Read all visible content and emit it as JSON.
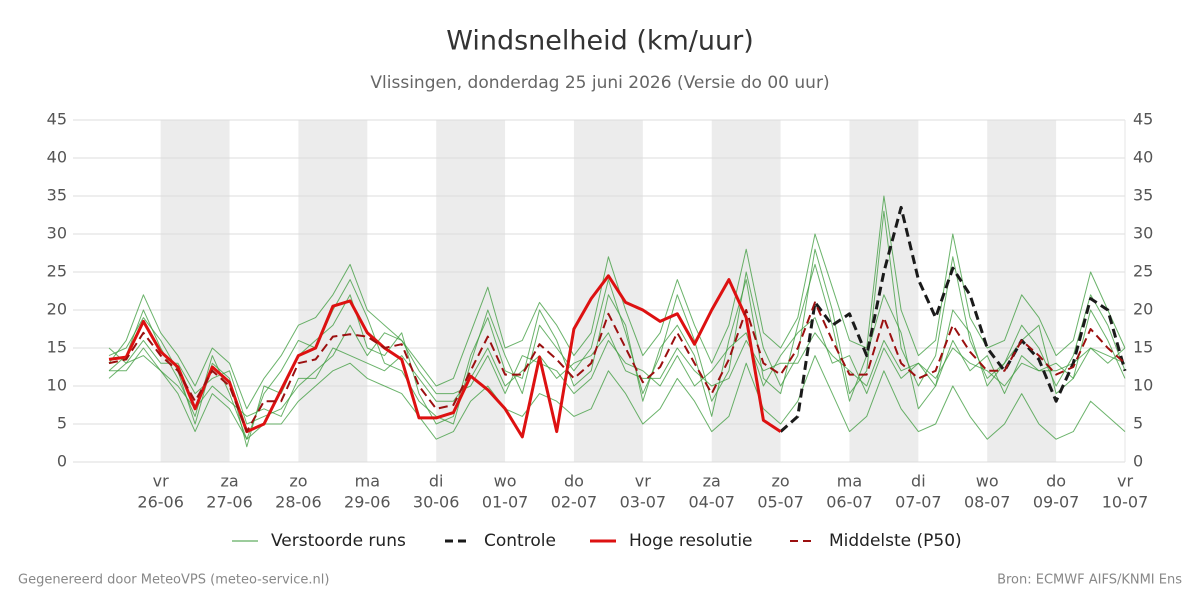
{
  "chart_data": {
    "type": "line",
    "title": "Windsnelheid (km/uur)",
    "subtitle": "Vlissingen, donderdag 25 juni 2026 (Versie do 00 uur)",
    "footer_left": "Gegenereerd door MeteoVPS (meteo-service.nl)",
    "footer_right": "Bron: ECMWF AIFS/KNMI Ens",
    "categories": [
      null,
      null,
      null,
      "26-06",
      null,
      null,
      null,
      "27-06",
      null,
      null,
      null,
      "28-06",
      null,
      null,
      null,
      "29-06",
      null,
      null,
      null,
      "30-06",
      null,
      null,
      null,
      "01-07",
      null,
      null,
      null,
      "02-07",
      null,
      null,
      null,
      "03-07",
      null,
      null,
      null,
      "04-07",
      null,
      null,
      null,
      "05-07",
      null,
      null,
      null,
      "06-07",
      null,
      null,
      null,
      "07-07",
      null,
      null,
      null,
      "08-07",
      null,
      null,
      null,
      "09-07",
      null,
      null,
      null,
      "10-07"
    ],
    "weekdays": [
      null,
      null,
      null,
      "vr",
      null,
      null,
      null,
      "za",
      null,
      null,
      null,
      "zo",
      null,
      null,
      null,
      "ma",
      null,
      null,
      null,
      "di",
      null,
      null,
      null,
      "wo",
      null,
      null,
      null,
      "do",
      null,
      null,
      null,
      "vr",
      null,
      null,
      null,
      "za",
      null,
      null,
      null,
      "zo",
      null,
      null,
      null,
      "ma",
      null,
      null,
      null,
      "di",
      null,
      null,
      null,
      "wo",
      null,
      null,
      null,
      "do",
      null,
      null,
      null,
      "vr"
    ],
    "ylim": [
      0,
      45
    ],
    "yticks": [
      0,
      5,
      10,
      15,
      20,
      25,
      30,
      35,
      40,
      45
    ],
    "grid": true,
    "ensemble": {
      "name": "Verstoorde runs",
      "color": "#3a9a3a",
      "runs": [
        [
          12,
          14,
          20,
          15,
          11,
          6,
          14,
          9,
          3,
          9,
          12,
          16,
          15,
          20,
          24,
          19,
          13,
          12,
          8,
          6,
          5,
          13,
          20,
          14,
          9,
          18,
          15,
          12,
          15,
          24,
          17,
          9,
          14,
          22,
          16,
          8,
          12,
          25,
          15,
          10,
          14,
          28,
          20,
          9,
          12,
          33,
          15,
          10,
          14,
          27,
          16,
          11,
          13,
          18,
          15,
          10,
          14,
          22,
          18,
          12
        ],
        [
          15,
          13,
          16,
          13,
          13,
          9,
          11,
          12,
          5,
          6,
          7,
          10,
          12,
          14,
          18,
          14,
          17,
          16,
          12,
          9,
          9,
          10,
          14,
          9,
          14,
          13,
          12,
          9,
          11,
          16,
          13,
          12,
          10,
          14,
          10,
          12,
          15,
          17,
          10,
          14,
          17,
          19,
          13,
          14,
          9,
          15,
          11,
          13,
          10,
          16,
          12,
          14,
          9,
          14,
          12,
          13,
          11,
          15,
          13,
          15
        ],
        [
          14,
          15,
          19,
          16,
          12,
          5,
          13,
          11,
          2,
          10,
          9,
          14,
          16,
          18,
          22,
          15,
          14,
          17,
          9,
          5,
          6,
          14,
          19,
          12,
          11,
          20,
          16,
          10,
          12,
          22,
          18,
          8,
          15,
          18,
          14,
          6,
          16,
          24,
          11,
          9,
          18,
          26,
          18,
          8,
          14,
          22,
          17,
          7,
          10,
          20,
          17,
          10,
          13,
          16,
          18,
          9,
          11,
          20,
          16,
          11
        ],
        [
          12,
          12,
          15,
          12,
          10,
          7,
          10,
          8,
          6,
          7,
          6,
          11,
          11,
          15,
          14,
          13,
          12,
          14,
          11,
          8,
          8,
          11,
          15,
          10,
          12,
          14,
          11,
          13,
          14,
          17,
          12,
          11,
          11,
          15,
          12,
          10,
          11,
          16,
          12,
          13,
          13,
          17,
          14,
          12,
          10,
          16,
          12,
          13,
          11,
          15,
          13,
          12,
          10,
          13,
          12,
          12,
          13,
          15,
          14,
          13
        ],
        [
          13,
          16,
          22,
          17,
          14,
          10,
          15,
          13,
          7,
          11,
          14,
          18,
          19,
          22,
          26,
          20,
          18,
          16,
          13,
          10,
          11,
          17,
          23,
          15,
          16,
          21,
          18,
          14,
          17,
          27,
          20,
          14,
          17,
          24,
          18,
          13,
          18,
          28,
          17,
          15,
          19,
          30,
          23,
          16,
          15,
          35,
          20,
          14,
          16,
          30,
          19,
          15,
          16,
          22,
          19,
          14,
          16,
          25,
          20,
          15
        ],
        [
          11,
          13,
          14,
          12,
          9,
          4,
          9,
          7,
          3,
          5,
          5,
          8,
          10,
          12,
          13,
          11,
          10,
          9,
          6,
          3,
          4,
          8,
          10,
          7,
          6,
          9,
          8,
          6,
          7,
          12,
          9,
          5,
          7,
          11,
          8,
          4,
          6,
          13,
          7,
          5,
          8,
          14,
          9,
          4,
          6,
          12,
          7,
          4,
          5,
          10,
          6,
          3,
          5,
          9,
          5,
          3,
          4,
          8,
          6,
          4
        ]
      ]
    },
    "series": [
      {
        "name": "Controle",
        "color": "#1a1a1a",
        "dash": true,
        "width": 3,
        "values": [
          null,
          null,
          null,
          null,
          null,
          null,
          null,
          null,
          null,
          null,
          null,
          null,
          null,
          null,
          null,
          null,
          null,
          null,
          null,
          null,
          null,
          null,
          null,
          null,
          null,
          null,
          null,
          null,
          null,
          null,
          null,
          null,
          null,
          null,
          null,
          null,
          null,
          null,
          null,
          4,
          6,
          21,
          18,
          19.5,
          14,
          25,
          33.5,
          24,
          19,
          25.5,
          22,
          15,
          12,
          16,
          13.5,
          8,
          13,
          21.5,
          20,
          12
        ]
      },
      {
        "name": "Hoge resolutie",
        "color": "#dd1111",
        "dash": false,
        "width": 3,
        "values": [
          13.5,
          13.8,
          18.5,
          14.5,
          12.5,
          7,
          12.5,
          10.5,
          4,
          5,
          9.5,
          14,
          15,
          20.5,
          21.2,
          17,
          15,
          13.5,
          5.8,
          5.8,
          6.5,
          11.3,
          9.5,
          7,
          3.3,
          13.8,
          4,
          17.5,
          21.5,
          24.5,
          21,
          20,
          18.5,
          19.5,
          15.5,
          20,
          24,
          19,
          5.5,
          4,
          null,
          null,
          null,
          null,
          null,
          null,
          null,
          null,
          null,
          null,
          null,
          null,
          null,
          null,
          null,
          null,
          null,
          null,
          null,
          null
        ]
      },
      {
        "name": "Middelste (P50)",
        "color": "#9b1010",
        "dash": true,
        "width": 2,
        "values": [
          13,
          13.5,
          17,
          14,
          12,
          8,
          12,
          10,
          4,
          8,
          8,
          13,
          13.5,
          16.5,
          16.8,
          16.5,
          15,
          15.5,
          10,
          7,
          7.5,
          12,
          16.5,
          11.5,
          11.5,
          15.5,
          13.5,
          11,
          13,
          19.5,
          15,
          10.5,
          12.5,
          17,
          13,
          9,
          13.5,
          20,
          13,
          11.5,
          15,
          21,
          16,
          11.5,
          11.5,
          19,
          13,
          11,
          12,
          18,
          14.5,
          12,
          12,
          16,
          14,
          11.5,
          12.5,
          17.5,
          15,
          13
        ]
      }
    ]
  }
}
